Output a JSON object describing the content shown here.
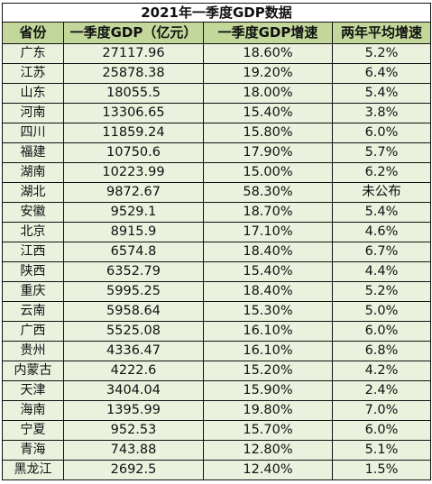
{
  "table": {
    "title": "2021年一季度GDP数据",
    "headers": [
      "省份",
      "一季度GDP（亿元）",
      "一季度GDP增速",
      "两年平均增速"
    ],
    "rows": [
      [
        "广东",
        "27117.96",
        "18.60%",
        "5.2%"
      ],
      [
        "江苏",
        "25878.38",
        "19.20%",
        "6.4%"
      ],
      [
        "山东",
        "18055.5",
        "18.00%",
        "5.4%"
      ],
      [
        "河南",
        "13306.65",
        "15.40%",
        "3.8%"
      ],
      [
        "四川",
        "11859.24",
        "15.80%",
        "6.0%"
      ],
      [
        "福建",
        "10750.6",
        "17.90%",
        "5.7%"
      ],
      [
        "湖南",
        "10223.99",
        "15.00%",
        "6.2%"
      ],
      [
        "湖北",
        "9872.67",
        "58.30%",
        "未公布"
      ],
      [
        "安徽",
        "9529.1",
        "18.70%",
        "5.4%"
      ],
      [
        "北京",
        "8915.9",
        "17.10%",
        "4.6%"
      ],
      [
        "江西",
        "6574.8",
        "18.40%",
        "6.7%"
      ],
      [
        "陕西",
        "6352.79",
        "15.40%",
        "4.4%"
      ],
      [
        "重庆",
        "5995.25",
        "18.40%",
        "5.2%"
      ],
      [
        "云南",
        "5958.64",
        "15.30%",
        "5.0%"
      ],
      [
        "广西",
        "5525.08",
        "16.10%",
        "6.0%"
      ],
      [
        "贵州",
        "4336.47",
        "16.10%",
        "6.8%"
      ],
      [
        "内蒙古",
        "4222.6",
        "15.20%",
        "4.2%"
      ],
      [
        "天津",
        "3404.04",
        "15.90%",
        "2.4%"
      ],
      [
        "海南",
        "1395.99",
        "19.80%",
        "7.0%"
      ],
      [
        "宁夏",
        "952.53",
        "15.70%",
        "6.0%"
      ],
      [
        "青海",
        "743.88",
        "12.80%",
        "5.1%"
      ],
      [
        "黑龙江",
        "2692.5",
        "12.40%",
        "1.5%"
      ]
    ]
  }
}
